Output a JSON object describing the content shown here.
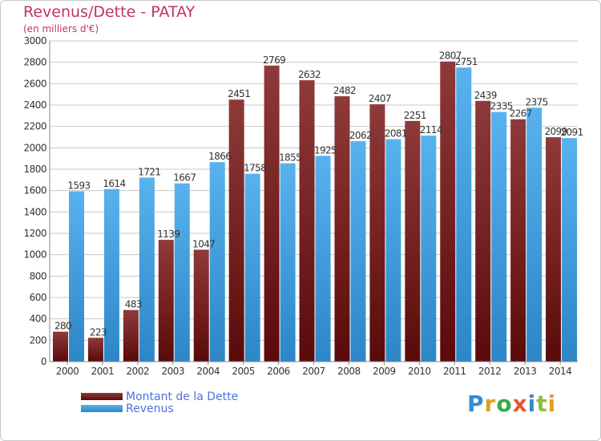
{
  "header": {
    "title": "Revenus/Dette - PATAY",
    "subtitle": "(en milliers d'€)"
  },
  "legend": {
    "items": [
      {
        "label": "Montant de la Dette",
        "color": "#7a1f1f"
      },
      {
        "label": "Revenus",
        "color": "#3d9ad6"
      }
    ]
  },
  "logo": {
    "text": "Proxiti"
  },
  "colors": {
    "debt_top": "#8f3a3a",
    "debt_bottom": "#5a0a0a",
    "revenue_top": "#58b2ee",
    "revenue_bottom": "#2c86c7",
    "axis_text": "#333333",
    "gridline": "#c8c8c8"
  },
  "chart_data": {
    "type": "bar",
    "title": "Revenus/Dette - PATAY",
    "subtitle": "(en milliers d'€)",
    "xlabel": "",
    "ylabel": "",
    "ylim": [
      0,
      3000
    ],
    "yticks": [
      0,
      200,
      400,
      600,
      800,
      1000,
      1200,
      1400,
      1600,
      1800,
      2000,
      2200,
      2400,
      2600,
      2800,
      3000
    ],
    "grid": true,
    "legend_position": "bottom-left",
    "categories": [
      "2000",
      "2001",
      "2002",
      "2003",
      "2004",
      "2005",
      "2006",
      "2007",
      "2008",
      "2009",
      "2010",
      "2011",
      "2012",
      "2013",
      "2014"
    ],
    "series": [
      {
        "name": "Montant de la Dette",
        "values": [
          280,
          223,
          483,
          1139,
          1047,
          2451,
          2769,
          2632,
          2482,
          2407,
          2251,
          2807,
          2439,
          2267,
          2099
        ]
      },
      {
        "name": "Revenus",
        "values": [
          1593,
          1614,
          1721,
          1667,
          1866,
          1758,
          1855,
          1925,
          2062,
          2081,
          2114,
          2751,
          2335,
          2375,
          2091
        ]
      }
    ],
    "data_labels": [
      [
        "280",
        "223",
        "483",
        "1139",
        "1047",
        "2451",
        "2769",
        "2632",
        "2482",
        "2407",
        "2251",
        "2807",
        "2439",
        "2267",
        "2099"
      ],
      [
        "1593",
        "1614",
        "1721",
        "1667",
        "1866",
        "1758",
        "1855",
        "1925",
        "2062",
        "2081",
        "2114",
        "2751",
        "2335",
        "2375",
        "2091"
      ]
    ]
  }
}
